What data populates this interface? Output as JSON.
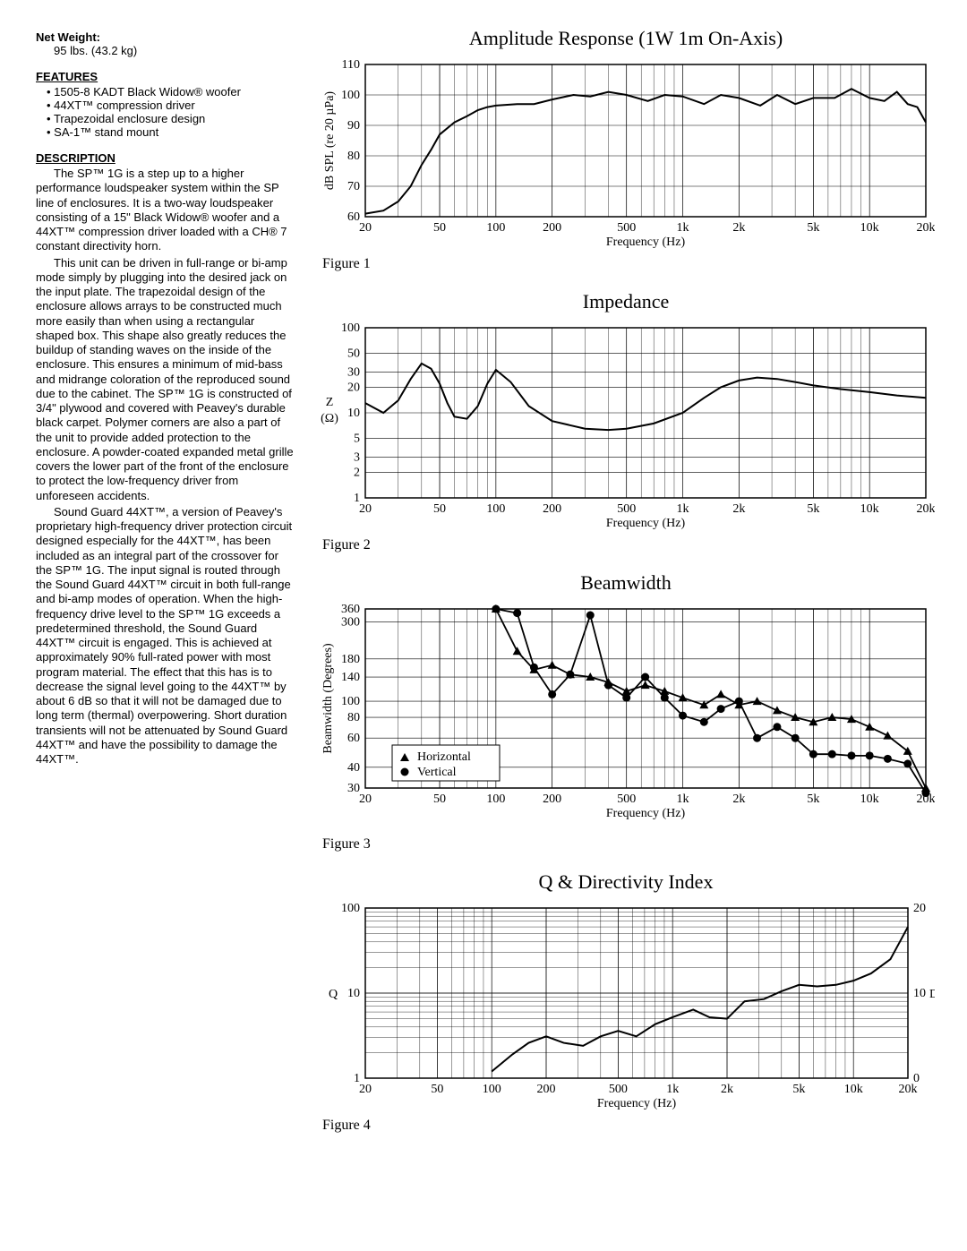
{
  "left": {
    "net_weight_h": "Net Weight:",
    "net_weight_v": "95 lbs. (43.2 kg)",
    "features_h": "FEATURES",
    "features": [
      "1505-8 KADT Black Widow® woofer",
      "44XT™ compression driver",
      "Trapezoidal enclosure design",
      "SA-1™ stand mount"
    ],
    "description_h": "DESCRIPTION",
    "p1": "The SP™ 1G is a step up to a higher performance loudspeaker system within the SP line of enclosures.  It is a two-way loudspeaker consisting of a 15\" Black Widow® woofer and a 44XT™ compression driver loaded with a CH® 7 constant directivity horn.",
    "p2": "This unit can be driven in full-range or bi-amp mode simply by plugging into the desired jack on the input plate. The trapezoidal design of the enclosure allows arrays to be constructed much more easily than when using a rectangular shaped box. This shape also greatly reduces the buildup of standing waves on the inside of the enclosure. This ensures a minimum of mid-bass and midrange coloration of the reproduced sound due to the cabinet. The SP™ 1G is constructed of 3/4\" plywood and covered with Peavey's durable black carpet. Polymer corners are also a part of the unit to provide added protection to the enclosure. A powder-coated expanded metal grille covers the lower part of the front of the enclosure to protect the low-frequency driver from unforeseen accidents.",
    "p3": "Sound Guard 44XT™, a version of Peavey's proprietary high-frequency driver protection circuit designed especially for the 44XT™, has been included as an integral part of the crossover for the SP™ 1G. The input signal is routed through the Sound Guard 44XT™ circuit in both full-range and bi-amp modes of operation. When the high-frequency drive level to the SP™ 1G exceeds a predetermined threshold, the Sound Guard 44XT™ circuit is engaged. This is achieved at approximately 90% full-rated power with most program material. The effect that this has is to decrease the signal level going to the 44XT™ by about 6 dB so that it will not be damaged due to long term (thermal) overpowering. Short duration transients will not be attenuated by Sound Guard 44XT™ and have the possibility to damage the 44XT™."
  },
  "charts": {
    "shared_x": {
      "label": "Frequency (Hz)",
      "ticks": [
        20,
        50,
        100,
        200,
        500,
        1000,
        2000,
        5000,
        10000,
        20000
      ],
      "tick_labels": [
        "20",
        "50",
        "100",
        "200",
        "500",
        "1k",
        "2k",
        "5k",
        "10k",
        "20k"
      ],
      "min": 20,
      "max": 20000
    },
    "fig1": {
      "title": "Amplitude Response   (1W 1m  On-Axis)",
      "caption": "Figure 1",
      "ylabel": "dB SPL (re 20 µPa)",
      "ymin": 60,
      "ymax": 110,
      "yticks": [
        60,
        70,
        80,
        90,
        100,
        110
      ],
      "series": [
        {
          "freq": 20,
          "v": 61
        },
        {
          "freq": 25,
          "v": 62
        },
        {
          "freq": 30,
          "v": 65
        },
        {
          "freq": 35,
          "v": 70
        },
        {
          "freq": 40,
          "v": 77
        },
        {
          "freq": 45,
          "v": 82
        },
        {
          "freq": 50,
          "v": 87
        },
        {
          "freq": 60,
          "v": 91
        },
        {
          "freq": 70,
          "v": 93
        },
        {
          "freq": 80,
          "v": 95
        },
        {
          "freq": 90,
          "v": 96
        },
        {
          "freq": 100,
          "v": 96.5
        },
        {
          "freq": 130,
          "v": 97
        },
        {
          "freq": 160,
          "v": 97
        },
        {
          "freq": 200,
          "v": 98.5
        },
        {
          "freq": 260,
          "v": 100
        },
        {
          "freq": 320,
          "v": 99.5
        },
        {
          "freq": 400,
          "v": 101
        },
        {
          "freq": 500,
          "v": 100
        },
        {
          "freq": 650,
          "v": 98
        },
        {
          "freq": 800,
          "v": 100
        },
        {
          "freq": 1000,
          "v": 99.5
        },
        {
          "freq": 1300,
          "v": 97
        },
        {
          "freq": 1600,
          "v": 100
        },
        {
          "freq": 2000,
          "v": 99
        },
        {
          "freq": 2600,
          "v": 96.5
        },
        {
          "freq": 3200,
          "v": 100
        },
        {
          "freq": 4000,
          "v": 97
        },
        {
          "freq": 5000,
          "v": 99
        },
        {
          "freq": 6500,
          "v": 99
        },
        {
          "freq": 8000,
          "v": 102
        },
        {
          "freq": 10000,
          "v": 99
        },
        {
          "freq": 12000,
          "v": 98
        },
        {
          "freq": 14000,
          "v": 101
        },
        {
          "freq": 16000,
          "v": 97
        },
        {
          "freq": 18000,
          "v": 96
        },
        {
          "freq": 20000,
          "v": 91
        }
      ]
    },
    "fig2": {
      "title": "Impedance",
      "caption": "Figure 2",
      "ylabel_top": "Z",
      "ylabel_bot": "(Ω)",
      "ymin_log": 1,
      "ymax_log": 100,
      "yticks": [
        1,
        2,
        3,
        5,
        10,
        20,
        30,
        50,
        100
      ],
      "series": [
        {
          "freq": 20,
          "v": 13
        },
        {
          "freq": 25,
          "v": 10
        },
        {
          "freq": 30,
          "v": 14
        },
        {
          "freq": 35,
          "v": 25
        },
        {
          "freq": 40,
          "v": 38
        },
        {
          "freq": 45,
          "v": 33
        },
        {
          "freq": 50,
          "v": 22
        },
        {
          "freq": 55,
          "v": 13
        },
        {
          "freq": 60,
          "v": 9
        },
        {
          "freq": 70,
          "v": 8.5
        },
        {
          "freq": 80,
          "v": 12
        },
        {
          "freq": 90,
          "v": 22
        },
        {
          "freq": 100,
          "v": 32
        },
        {
          "freq": 120,
          "v": 23
        },
        {
          "freq": 150,
          "v": 12
        },
        {
          "freq": 200,
          "v": 8
        },
        {
          "freq": 300,
          "v": 6.5
        },
        {
          "freq": 400,
          "v": 6.3
        },
        {
          "freq": 500,
          "v": 6.5
        },
        {
          "freq": 700,
          "v": 7.5
        },
        {
          "freq": 1000,
          "v": 10
        },
        {
          "freq": 1300,
          "v": 15
        },
        {
          "freq": 1600,
          "v": 20
        },
        {
          "freq": 2000,
          "v": 24
        },
        {
          "freq": 2500,
          "v": 26
        },
        {
          "freq": 3200,
          "v": 25
        },
        {
          "freq": 4000,
          "v": 23
        },
        {
          "freq": 5000,
          "v": 21
        },
        {
          "freq": 7000,
          "v": 19
        },
        {
          "freq": 10000,
          "v": 17.5
        },
        {
          "freq": 14000,
          "v": 16
        },
        {
          "freq": 20000,
          "v": 15
        }
      ]
    },
    "fig3": {
      "title": "Beamwidth",
      "caption": "Figure 3",
      "ylabel": "Beamwidth (Degrees)",
      "yticks": [
        30,
        40,
        60,
        80,
        100,
        140,
        180,
        300,
        360
      ],
      "ymin": 30,
      "ymax": 360,
      "legend": {
        "h": "Horizontal",
        "v": "Vertical"
      },
      "horizontal": [
        {
          "freq": 100,
          "v": 360
        },
        {
          "freq": 130,
          "v": 200
        },
        {
          "freq": 160,
          "v": 155
        },
        {
          "freq": 200,
          "v": 165
        },
        {
          "freq": 250,
          "v": 145
        },
        {
          "freq": 320,
          "v": 140
        },
        {
          "freq": 400,
          "v": 130
        },
        {
          "freq": 500,
          "v": 115
        },
        {
          "freq": 630,
          "v": 125
        },
        {
          "freq": 800,
          "v": 115
        },
        {
          "freq": 1000,
          "v": 105
        },
        {
          "freq": 1300,
          "v": 95
        },
        {
          "freq": 1600,
          "v": 110
        },
        {
          "freq": 2000,
          "v": 95
        },
        {
          "freq": 2500,
          "v": 100
        },
        {
          "freq": 3200,
          "v": 88
        },
        {
          "freq": 4000,
          "v": 80
        },
        {
          "freq": 5000,
          "v": 75
        },
        {
          "freq": 6300,
          "v": 80
        },
        {
          "freq": 8000,
          "v": 78
        },
        {
          "freq": 10000,
          "v": 70
        },
        {
          "freq": 12500,
          "v": 62
        },
        {
          "freq": 16000,
          "v": 50
        },
        {
          "freq": 20000,
          "v": 30
        }
      ],
      "vertical": [
        {
          "freq": 100,
          "v": 360
        },
        {
          "freq": 130,
          "v": 340
        },
        {
          "freq": 160,
          "v": 160
        },
        {
          "freq": 200,
          "v": 110
        },
        {
          "freq": 250,
          "v": 145
        },
        {
          "freq": 320,
          "v": 330
        },
        {
          "freq": 400,
          "v": 125
        },
        {
          "freq": 500,
          "v": 105
        },
        {
          "freq": 630,
          "v": 140
        },
        {
          "freq": 800,
          "v": 105
        },
        {
          "freq": 1000,
          "v": 82
        },
        {
          "freq": 1300,
          "v": 75
        },
        {
          "freq": 1600,
          "v": 90
        },
        {
          "freq": 2000,
          "v": 100
        },
        {
          "freq": 2500,
          "v": 60
        },
        {
          "freq": 3200,
          "v": 70
        },
        {
          "freq": 4000,
          "v": 60
        },
        {
          "freq": 5000,
          "v": 48
        },
        {
          "freq": 6300,
          "v": 48
        },
        {
          "freq": 8000,
          "v": 47
        },
        {
          "freq": 10000,
          "v": 47
        },
        {
          "freq": 12500,
          "v": 45
        },
        {
          "freq": 16000,
          "v": 42
        },
        {
          "freq": 20000,
          "v": 28
        }
      ]
    },
    "fig4": {
      "title": "Q & Directivity Index",
      "caption": "Figure 4",
      "ylabel_left": "Q",
      "ylabel_right": "Di",
      "ymin": 1,
      "ymax": 100,
      "yticks_left": [
        1,
        10,
        100
      ],
      "yticks_right": [
        "0",
        "10",
        "20"
      ],
      "series": [
        {
          "freq": 100,
          "v": 1.2
        },
        {
          "freq": 130,
          "v": 1.9
        },
        {
          "freq": 160,
          "v": 2.6
        },
        {
          "freq": 200,
          "v": 3.1
        },
        {
          "freq": 250,
          "v": 2.6
        },
        {
          "freq": 320,
          "v": 2.4
        },
        {
          "freq": 400,
          "v": 3.1
        },
        {
          "freq": 500,
          "v": 3.6
        },
        {
          "freq": 630,
          "v": 3.1
        },
        {
          "freq": 800,
          "v": 4.3
        },
        {
          "freq": 1000,
          "v": 5.2
        },
        {
          "freq": 1300,
          "v": 6.4
        },
        {
          "freq": 1600,
          "v": 5.2
        },
        {
          "freq": 2000,
          "v": 5.0
        },
        {
          "freq": 2500,
          "v": 8.0
        },
        {
          "freq": 3200,
          "v": 8.5
        },
        {
          "freq": 4000,
          "v": 10.5
        },
        {
          "freq": 5000,
          "v": 12.5
        },
        {
          "freq": 6300,
          "v": 12.0
        },
        {
          "freq": 8000,
          "v": 12.5
        },
        {
          "freq": 10000,
          "v": 14
        },
        {
          "freq": 12500,
          "v": 17
        },
        {
          "freq": 16000,
          "v": 25
        },
        {
          "freq": 20000,
          "v": 60
        }
      ]
    }
  },
  "style": {
    "chart_bg": "#ffffff",
    "line_color": "#000000",
    "font_serif": "Times New Roman"
  }
}
